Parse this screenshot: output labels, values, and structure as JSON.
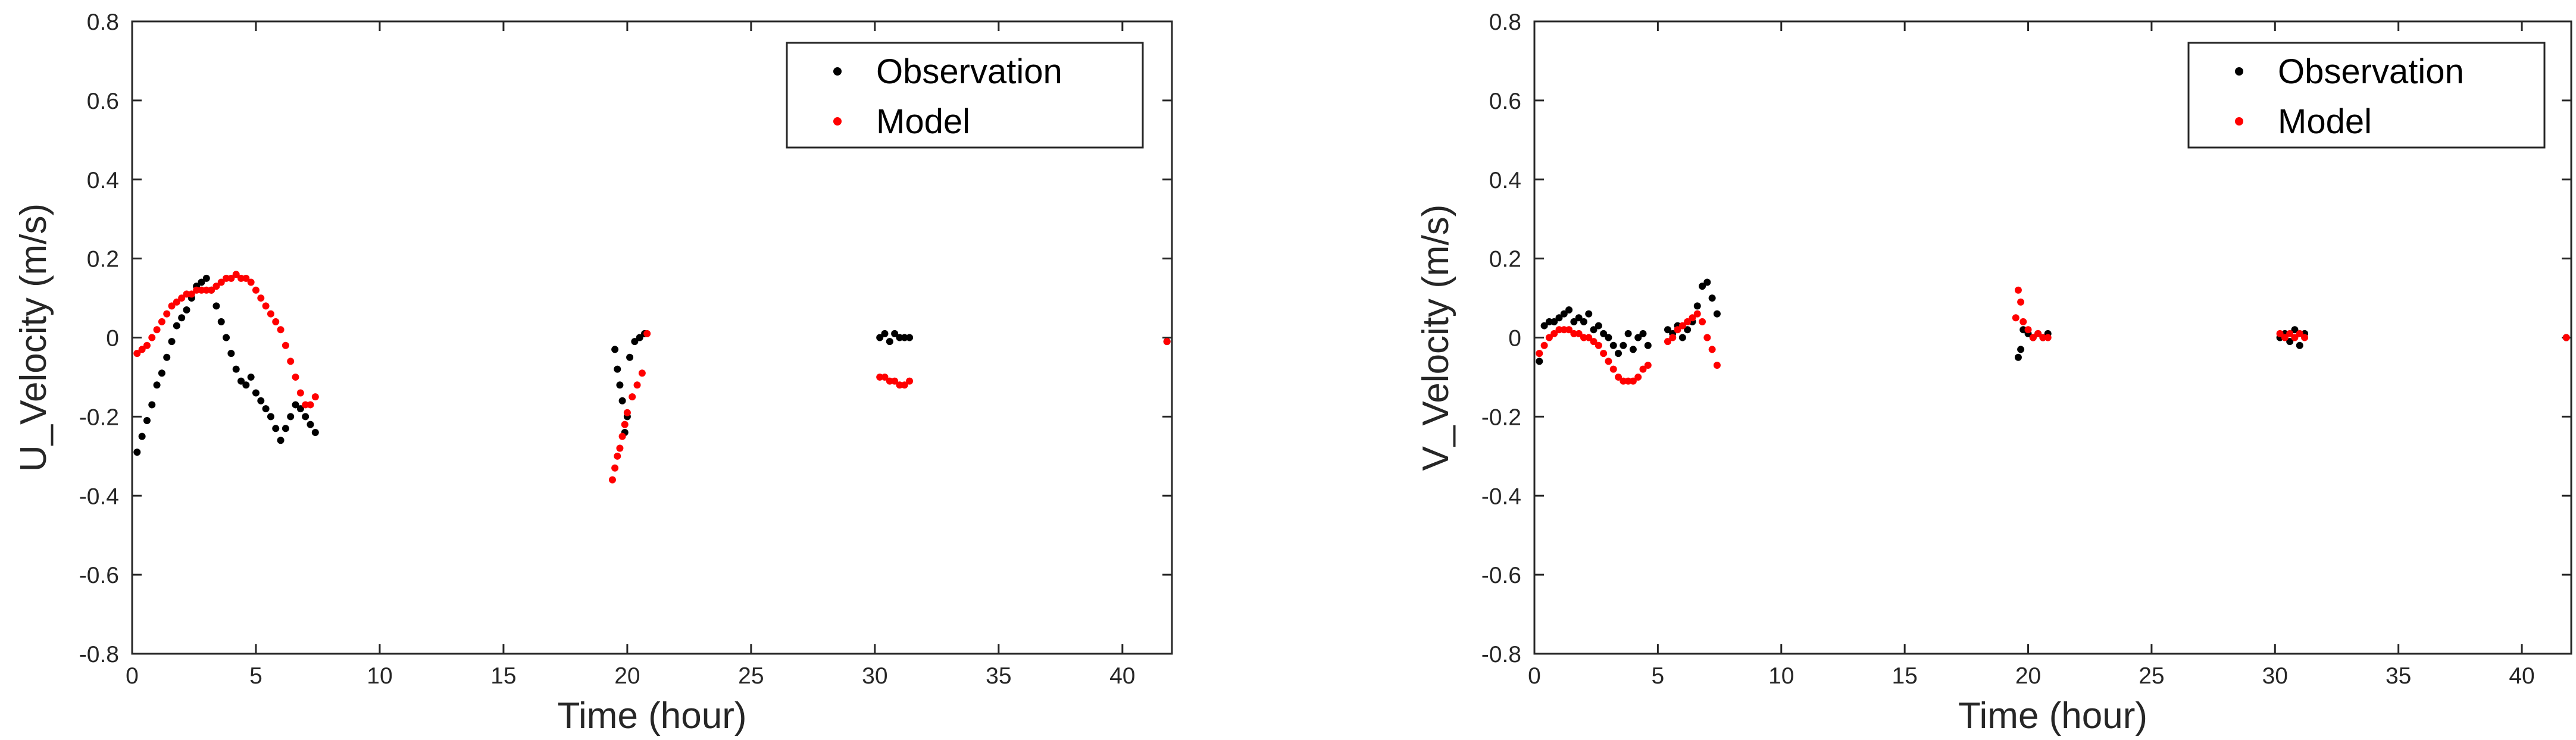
{
  "chart_data": [
    {
      "type": "scatter",
      "title": "",
      "xlabel": "Time (hour)",
      "ylabel": "U_Velocity (m/s)",
      "xlim": [
        0,
        42
      ],
      "ylim": [
        -0.8,
        0.8
      ],
      "xticks": [
        0,
        5,
        10,
        15,
        20,
        25,
        30,
        35,
        40
      ],
      "yticks": [
        -0.8,
        -0.6,
        -0.4,
        -0.2,
        0,
        0.2,
        0.4,
        0.6,
        0.8
      ],
      "legend_position": "top-right",
      "series": [
        {
          "name": "Observation",
          "color": "#000000",
          "x": [
            0.2,
            0.4,
            0.6,
            0.8,
            1.0,
            1.2,
            1.4,
            1.6,
            1.8,
            2.0,
            2.2,
            2.4,
            2.6,
            2.8,
            3.0,
            3.2,
            3.4,
            3.6,
            3.8,
            4.0,
            4.2,
            4.4,
            4.6,
            4.8,
            5.0,
            5.2,
            5.4,
            5.6,
            5.8,
            6.0,
            6.2,
            6.4,
            6.6,
            6.8,
            7.0,
            7.2,
            7.4,
            19.5,
            19.6,
            19.7,
            19.8,
            19.9,
            20.0,
            20.1,
            20.3,
            20.5,
            20.7,
            30.2,
            30.4,
            30.6,
            30.8,
            31.0,
            31.2,
            31.4,
            41.8
          ],
          "y": [
            -0.29,
            -0.25,
            -0.21,
            -0.17,
            -0.12,
            -0.09,
            -0.05,
            -0.01,
            0.03,
            0.05,
            0.07,
            0.1,
            0.13,
            0.14,
            0.15,
            0.12,
            0.08,
            0.04,
            0.0,
            -0.04,
            -0.08,
            -0.11,
            -0.12,
            -0.1,
            -0.14,
            -0.16,
            -0.18,
            -0.2,
            -0.23,
            -0.26,
            -0.23,
            -0.2,
            -0.17,
            -0.18,
            -0.2,
            -0.22,
            -0.24,
            -0.03,
            -0.08,
            -0.12,
            -0.16,
            -0.24,
            -0.2,
            -0.05,
            -0.01,
            0.0,
            0.01,
            0.0,
            0.01,
            -0.01,
            0.01,
            0.0,
            0.0,
            0.0,
            -0.01
          ]
        },
        {
          "name": "Model",
          "color": "#ff0000",
          "x": [
            0.2,
            0.4,
            0.6,
            0.8,
            1.0,
            1.2,
            1.4,
            1.6,
            1.8,
            2.0,
            2.2,
            2.4,
            2.6,
            2.8,
            3.0,
            3.2,
            3.4,
            3.6,
            3.8,
            4.0,
            4.2,
            4.4,
            4.6,
            4.8,
            5.0,
            5.2,
            5.4,
            5.6,
            5.8,
            6.0,
            6.2,
            6.4,
            6.6,
            6.8,
            7.0,
            7.2,
            7.4,
            19.4,
            19.5,
            19.6,
            19.7,
            19.8,
            19.9,
            20.0,
            20.2,
            20.4,
            20.6,
            20.8,
            30.2,
            30.4,
            30.6,
            30.8,
            31.0,
            31.2,
            31.4,
            41.8
          ],
          "y": [
            -0.04,
            -0.03,
            -0.02,
            0.0,
            0.02,
            0.04,
            0.06,
            0.08,
            0.09,
            0.1,
            0.11,
            0.11,
            0.12,
            0.12,
            0.12,
            0.12,
            0.13,
            0.14,
            0.15,
            0.15,
            0.16,
            0.15,
            0.15,
            0.14,
            0.12,
            0.1,
            0.08,
            0.06,
            0.04,
            0.02,
            -0.02,
            -0.06,
            -0.1,
            -0.14,
            -0.17,
            -0.17,
            -0.15,
            -0.36,
            -0.33,
            -0.3,
            -0.28,
            -0.25,
            -0.22,
            -0.19,
            -0.15,
            -0.12,
            -0.09,
            0.01,
            -0.1,
            -0.1,
            -0.11,
            -0.11,
            -0.12,
            -0.12,
            -0.11,
            -0.01
          ]
        }
      ]
    },
    {
      "type": "scatter",
      "title": "",
      "xlabel": "Time (hour)",
      "ylabel": "V_Velocity (m/s)",
      "xlim": [
        0,
        42
      ],
      "ylim": [
        -0.8,
        0.8
      ],
      "xticks": [
        0,
        5,
        10,
        15,
        20,
        25,
        30,
        35,
        40
      ],
      "yticks": [
        -0.8,
        -0.6,
        -0.4,
        -0.2,
        0,
        0.2,
        0.4,
        0.6,
        0.8
      ],
      "legend_position": "top-right",
      "series": [
        {
          "name": "Observation",
          "color": "#000000",
          "x": [
            0.2,
            0.4,
            0.6,
            0.8,
            1.0,
            1.2,
            1.4,
            1.6,
            1.8,
            2.0,
            2.2,
            2.4,
            2.6,
            2.8,
            3.0,
            3.2,
            3.4,
            3.6,
            3.8,
            4.0,
            4.2,
            4.4,
            4.6,
            5.4,
            5.6,
            5.8,
            6.0,
            6.2,
            6.4,
            6.6,
            6.8,
            7.0,
            7.2,
            7.4,
            19.6,
            19.7,
            19.8,
            20.0,
            20.2,
            20.4,
            20.6,
            20.8,
            30.2,
            30.4,
            30.6,
            30.8,
            31.0,
            31.2,
            41.8
          ],
          "y": [
            -0.06,
            0.03,
            0.04,
            0.04,
            0.05,
            0.06,
            0.07,
            0.04,
            0.05,
            0.04,
            0.06,
            0.02,
            0.03,
            0.01,
            0.0,
            -0.02,
            -0.04,
            -0.02,
            0.01,
            -0.03,
            0.0,
            0.01,
            -0.02,
            0.02,
            0.01,
            0.03,
            0.0,
            0.02,
            0.04,
            0.08,
            0.13,
            0.14,
            0.1,
            0.06,
            -0.05,
            -0.03,
            0.02,
            0.01,
            0.0,
            0.01,
            0.0,
            0.01,
            0.0,
            0.01,
            -0.01,
            0.02,
            -0.02,
            0.01,
            0.0
          ]
        },
        {
          "name": "Model",
          "color": "#ff0000",
          "x": [
            0.2,
            0.4,
            0.6,
            0.8,
            1.0,
            1.2,
            1.4,
            1.6,
            1.8,
            2.0,
            2.2,
            2.4,
            2.6,
            2.8,
            3.0,
            3.2,
            3.4,
            3.6,
            3.8,
            4.0,
            4.2,
            4.4,
            4.6,
            5.4,
            5.6,
            5.8,
            6.0,
            6.2,
            6.4,
            6.6,
            6.8,
            7.0,
            7.2,
            7.4,
            19.5,
            19.6,
            19.7,
            19.8,
            20.0,
            20.2,
            20.4,
            20.6,
            20.8,
            30.2,
            30.4,
            30.6,
            30.8,
            31.0,
            31.2,
            41.8
          ],
          "y": [
            -0.04,
            -0.02,
            0.0,
            0.01,
            0.02,
            0.02,
            0.02,
            0.01,
            0.01,
            0.0,
            0.0,
            -0.01,
            -0.02,
            -0.04,
            -0.06,
            -0.08,
            -0.1,
            -0.11,
            -0.11,
            -0.11,
            -0.1,
            -0.08,
            -0.07,
            -0.01,
            0.0,
            0.02,
            0.03,
            0.04,
            0.05,
            0.06,
            0.04,
            0.0,
            -0.03,
            -0.07,
            0.05,
            0.12,
            0.09,
            0.04,
            0.02,
            0.0,
            0.01,
            0.0,
            0.0,
            0.01,
            0.0,
            0.01,
            0.0,
            0.01,
            0.0,
            0.0
          ]
        }
      ]
    }
  ]
}
